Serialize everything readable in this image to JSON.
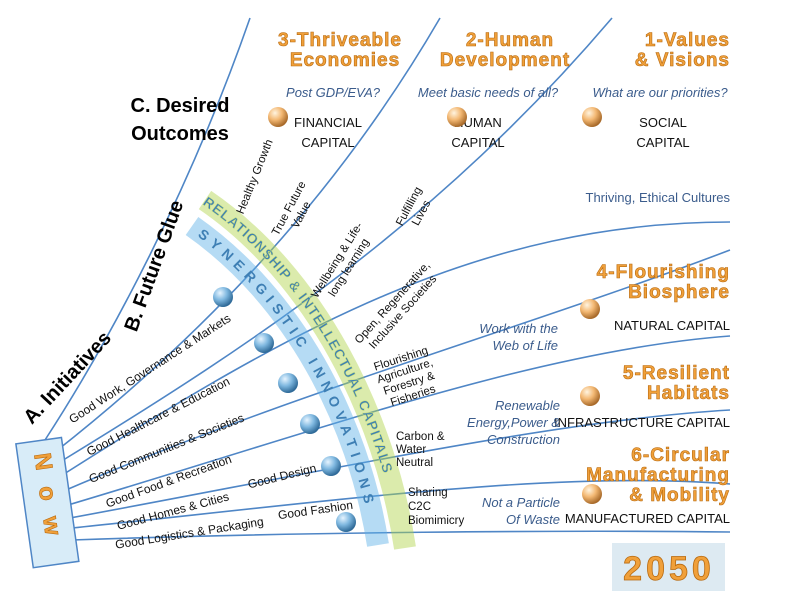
{
  "outcomes_label": [
    "C. Desired",
    "Outcomes"
  ],
  "glue_label": "B. Future Glue",
  "initiatives_label": "A. Initiatives",
  "now_label": "Now",
  "end_label": "2050",
  "columns": [
    {
      "title": [
        "3-Thriveable",
        "Economies"
      ],
      "question": "Post GDP/EVA?",
      "capital": [
        "FINANCIAL",
        "CAPITAL"
      ]
    },
    {
      "title": [
        "2-Human",
        "Development"
      ],
      "question": "Meet basic needs of all?",
      "capital": [
        "HUMAN",
        "CAPITAL"
      ]
    },
    {
      "title": [
        "1-Values",
        "& Visions"
      ],
      "question": "What are our priorities?",
      "capital": [
        "SOCIAL",
        "CAPITAL"
      ]
    }
  ],
  "culture": "Thriving, Ethical Cultures",
  "rows": [
    {
      "title": [
        "4-Flourishing",
        "Biosphere"
      ],
      "motto": [
        "Work with the",
        "Web of Life"
      ],
      "capital": "NATURAL CAPITAL"
    },
    {
      "title": [
        "5-Resilient",
        "Habitats"
      ],
      "motto": [
        "Renewable",
        "Energy,Power &",
        "Construction"
      ],
      "capital": "INFRASTRUCTURE CAPITAL"
    },
    {
      "title": [
        "6-Circular",
        "Manufacturing",
        "& Mobility"
      ],
      "motto": [
        "Not a Particle",
        "Of Waste"
      ],
      "capital": "MANUFACTURED CAPITAL"
    }
  ],
  "glue": [
    [
      "Healthy Growth"
    ],
    [
      "True Future",
      "Value"
    ],
    [
      "Fulfilling",
      "Lives"
    ],
    [
      "Wellbeing & Life-",
      "long learning"
    ],
    [
      "Open, Regenerative,",
      "Inclusive Societies"
    ],
    [
      "Flourishing",
      "Agriculture,",
      "Forestry &",
      "Fisheries"
    ],
    [
      "Carbon &",
      "Water",
      "Neutral"
    ],
    [
      "Sharing",
      "C2C",
      "Biomimicry"
    ]
  ],
  "initiatives": [
    "Good Work, Governance & Markets",
    "Good Healthcare & Education",
    "Good Communities & Societies",
    "Good Food & Recreation",
    "Good Homes & Cities",
    "Good Design",
    "Good Logistics & Packaging",
    "Good Fashion"
  ],
  "arc": [
    "RELATIONSHIP & INTELLECTUAL CAPITALS",
    "SYNERGISTIC INNOVATIONS"
  ]
}
